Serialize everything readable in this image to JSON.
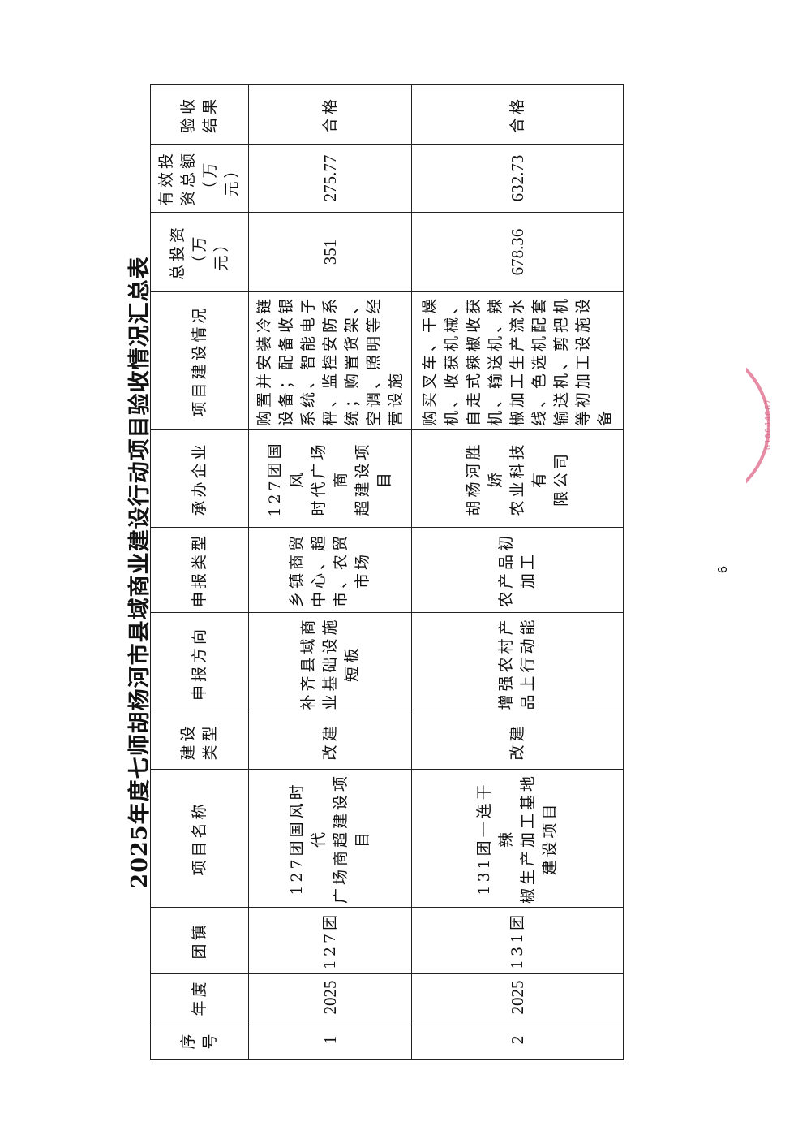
{
  "title": "2025年度七师胡杨河市县域商业建设行动项目验收情况汇总表",
  "table": {
    "headers": [
      "序\n号",
      "年度",
      "团镇",
      "项目名称",
      "建设\n类型",
      "申报方向",
      "申报类型",
      "承办企业",
      "项目建设情况",
      "总投资\n（万\n元）",
      "有效投\n资总额\n（万\n元）",
      "验收\n结果"
    ],
    "rows": [
      [
        "1",
        "2025",
        "127团",
        "127团国风时代\n广场商超建设项\n目",
        "改建",
        "补齐县域商\n业基础设施\n短板",
        "乡镇商贸\n中心、超\n市、农贸\n市场",
        "127团国风\n时代广场商\n超建设项目",
        "购置并安装冷链\n设备；配备收银\n系统、智能电子\n秤、监控安防系\n统；购置货架、\n空调、照明等经\n营设施",
        "351",
        "275.77",
        "合格"
      ],
      [
        "2",
        "2025",
        "131团",
        "131团一连干辣\n椒生产加工基地\n建设项目",
        "改建",
        "增强农村产\n品上行动能",
        "农产品初\n加工",
        "胡杨河胜娇\n农业科技有\n限公司",
        "购买叉车、干燥\n机、收获机械、\n自走式辣椒收获\n机、输送机、辣\n椒加工生产流水\n线、色选机配套\n输送机、剪把机\n等初加工设施设\n备",
        "678.36",
        "632.73",
        "合格"
      ]
    ]
  },
  "page_number": "6",
  "stamp": {
    "text": "G10044087",
    "color": "#e0708f"
  }
}
